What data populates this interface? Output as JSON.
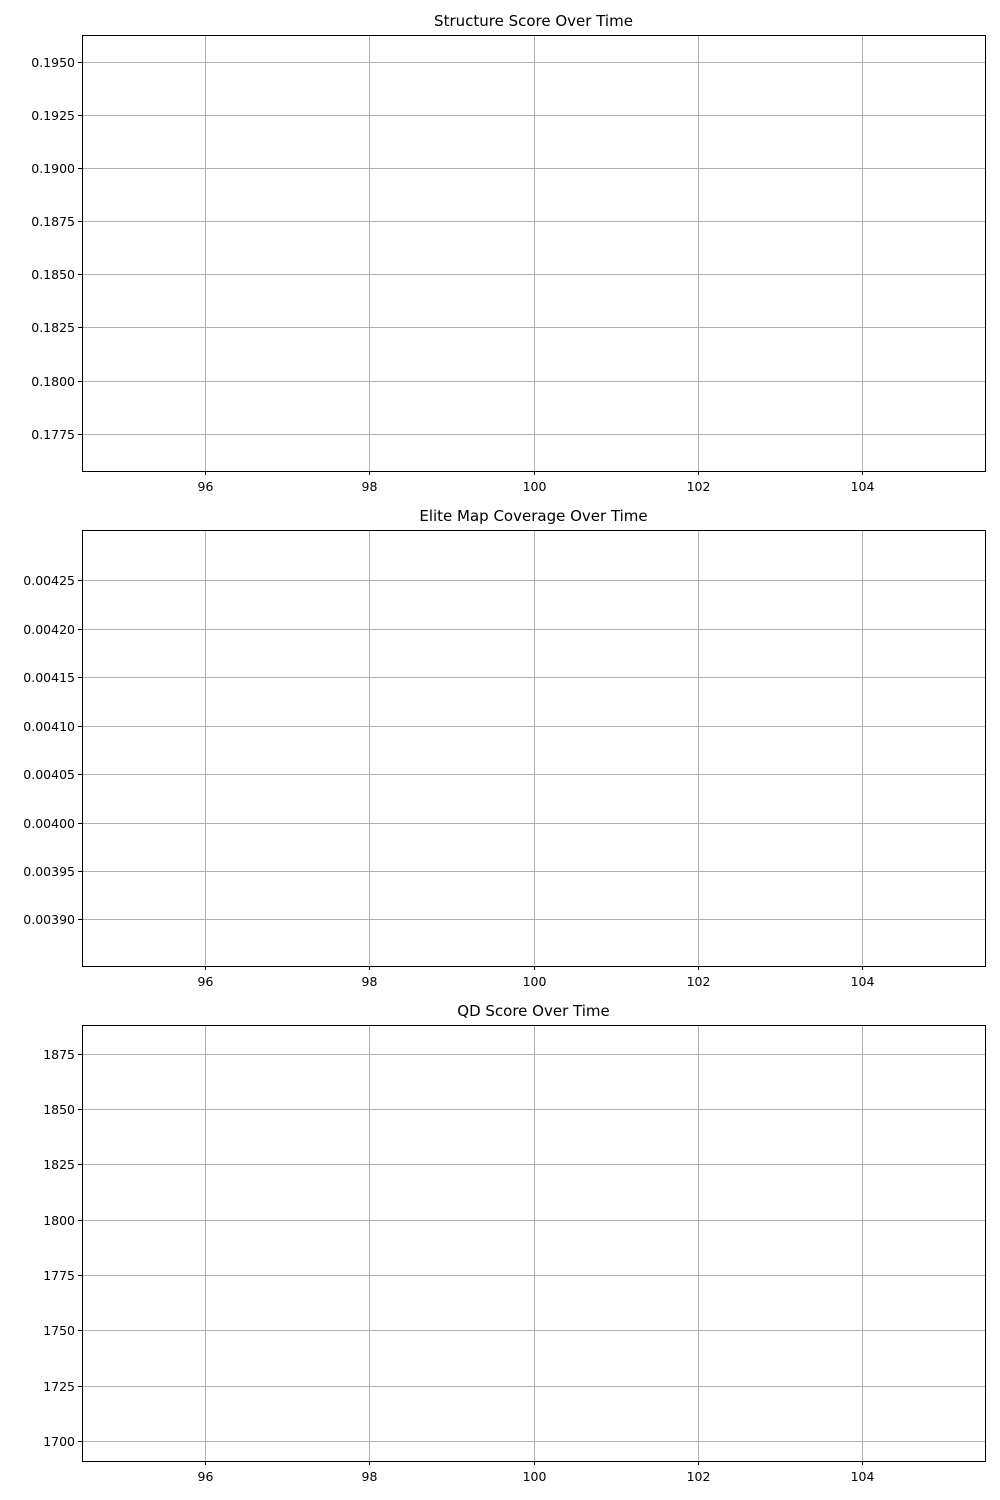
{
  "chart_data": [
    {
      "type": "line",
      "title": "Structure Score Over Time",
      "xlabel": "",
      "ylabel": "",
      "grid": true,
      "xlim": [
        94.5,
        105.5
      ],
      "ylim": [
        0.17575,
        0.19625
      ],
      "x_ticks": [
        96,
        98,
        100,
        102,
        104
      ],
      "x_tick_labels": [
        "96",
        "98",
        "100",
        "102",
        "104"
      ],
      "y_ticks": [
        0.1775,
        0.18,
        0.1825,
        0.185,
        0.1875,
        0.19,
        0.1925,
        0.195
      ],
      "y_tick_labels": [
        "0.1775",
        "0.1800",
        "0.1825",
        "0.1850",
        "0.1875",
        "0.1900",
        "0.1925",
        "0.1950"
      ],
      "series": []
    },
    {
      "type": "line",
      "title": "Elite Map Coverage Over Time",
      "xlabel": "",
      "ylabel": "",
      "grid": true,
      "xlim": [
        94.5,
        105.5
      ],
      "ylim": [
        0.003852,
        0.004302
      ],
      "x_ticks": [
        96,
        98,
        100,
        102,
        104
      ],
      "x_tick_labels": [
        "96",
        "98",
        "100",
        "102",
        "104"
      ],
      "y_ticks": [
        0.0039,
        0.00395,
        0.004,
        0.00405,
        0.0041,
        0.00415,
        0.0042,
        0.00425
      ],
      "y_tick_labels": [
        "0.00390",
        "0.00395",
        "0.00400",
        "0.00405",
        "0.00410",
        "0.00415",
        "0.00420",
        "0.00425"
      ],
      "series": []
    },
    {
      "type": "line",
      "title": "QD Score Over Time",
      "xlabel": "",
      "ylabel": "",
      "grid": true,
      "xlim": [
        94.5,
        105.5
      ],
      "ylim": [
        1691,
        1888
      ],
      "x_ticks": [
        96,
        98,
        100,
        102,
        104
      ],
      "x_tick_labels": [
        "96",
        "98",
        "100",
        "102",
        "104"
      ],
      "y_ticks": [
        1700,
        1725,
        1750,
        1775,
        1800,
        1825,
        1850,
        1875
      ],
      "y_tick_labels": [
        "1700",
        "1725",
        "1750",
        "1775",
        "1800",
        "1825",
        "1850",
        "1875"
      ],
      "series": []
    }
  ]
}
